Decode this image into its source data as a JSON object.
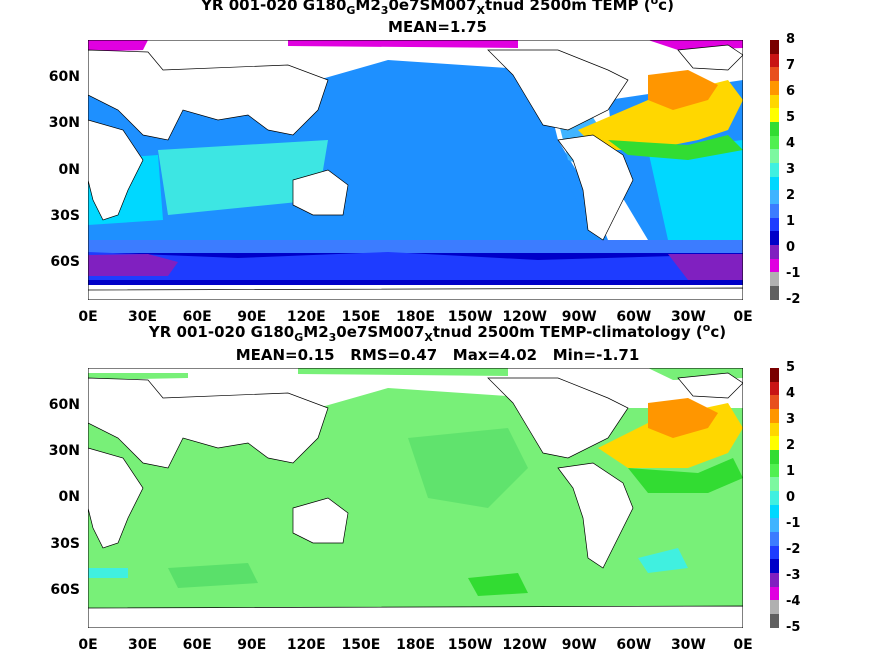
{
  "panel1": {
    "title": "YR 001-020 G180_GM2_30e7SM007_Xtnud 2500m TEMP (°c)",
    "title_parts": [
      "YR 001-020 G180",
      "G",
      "M2",
      "3",
      "0e7SM007",
      "X",
      "tnud 2500m TEMP (",
      "o",
      "c)"
    ],
    "stats": "MEAN=1.75",
    "colorbar": {
      "labels": [
        "8",
        "7",
        "6",
        "5",
        "4",
        "3",
        "2",
        "1",
        "0",
        "-1",
        "-2"
      ],
      "colors": [
        "#7a0000",
        "#c81414",
        "#e8501e",
        "#ff9600",
        "#ffd700",
        "#ffff00",
        "#32dc32",
        "#50f050",
        "#7cf8a0",
        "#40f0e0",
        "#00d8ff",
        "#40b4ff",
        "#3c7cff",
        "#1e3cff",
        "#0000c8",
        "#8020c0",
        "#e000e0",
        "#b0b0b0",
        "#606060"
      ]
    }
  },
  "panel2": {
    "title": "YR 001-020 G180_GM2_30e7SM007_Xtnud 2500m TEMP-climatology (°c)",
    "title_parts": [
      "YR 001-020 G180",
      "G",
      "M2",
      "3",
      "0e7SM007",
      "X",
      "tnud 2500m TEMP-climatology (",
      "o",
      "c)"
    ],
    "stats": "MEAN=0.15   RMS=0.47   Max=4.02   Min=-1.71",
    "colorbar": {
      "labels": [
        "5",
        "4",
        "3",
        "2",
        "1",
        "0",
        "-1",
        "-2",
        "-3",
        "-4",
        "-5"
      ],
      "colors": [
        "#7a0000",
        "#c81414",
        "#e8501e",
        "#ff9600",
        "#ffd700",
        "#ffff00",
        "#32dc32",
        "#50f050",
        "#7cf8a0",
        "#40f0e0",
        "#00d8ff",
        "#40b4ff",
        "#3c7cff",
        "#1e3cff",
        "#0000c8",
        "#8020c0",
        "#e000e0",
        "#b0b0b0",
        "#606060"
      ]
    }
  },
  "axes": {
    "lat_labels": [
      "60N",
      "30N",
      "0N",
      "30S",
      "60S"
    ],
    "lon_labels": [
      "0E",
      "30E",
      "60E",
      "90E",
      "120E",
      "150E",
      "180E",
      "150W",
      "120W",
      "90W",
      "60W",
      "30W",
      "0E"
    ]
  },
  "colors": {
    "ocean_top": "#1e90ff",
    "ocean_bottom": "#78f078",
    "land": "#ffffff"
  }
}
